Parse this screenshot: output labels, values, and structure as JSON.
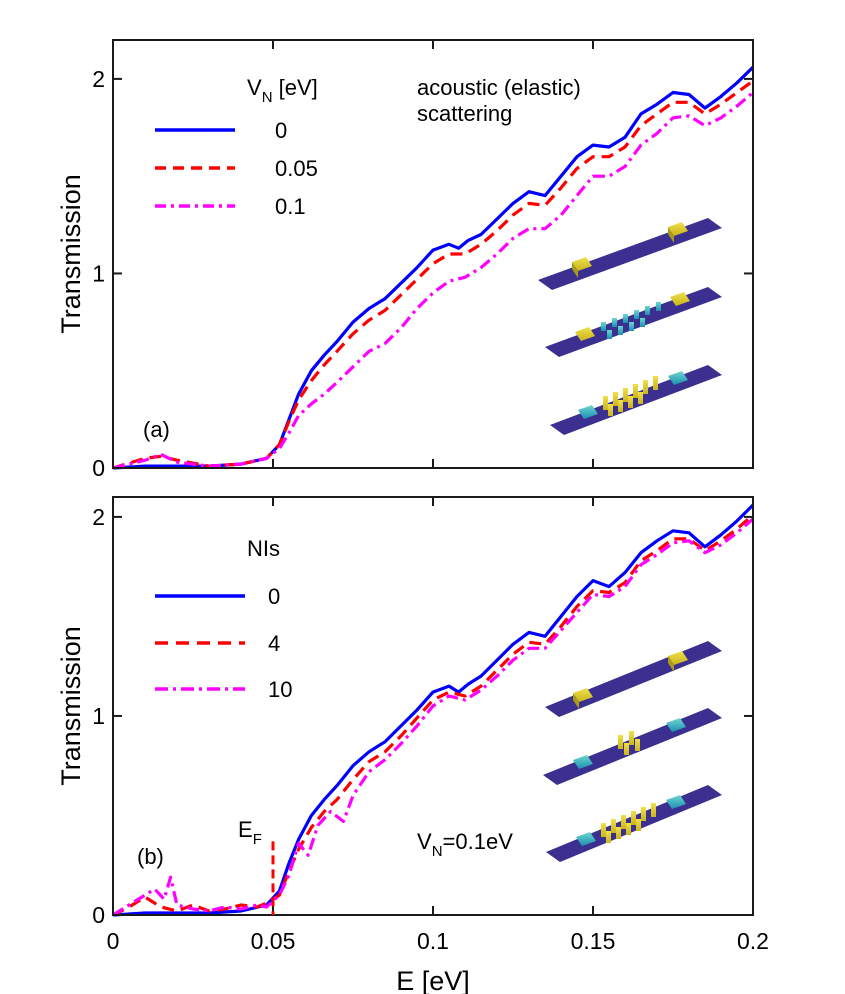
{
  "chart_data": [
    {
      "panel": "(a)",
      "type": "line",
      "xlabel": "",
      "ylabel": "Transmission",
      "xlim": [
        0,
        0.2
      ],
      "ylim": [
        0,
        2.2
      ],
      "xticks": [
        0,
        0.05,
        0.1,
        0.15,
        0.2
      ],
      "yticks": [
        0,
        1,
        2
      ],
      "legend": {
        "placement": "top-left",
        "title": "V",
        "title_sub": "N",
        "title_suffix": " [eV]"
      },
      "annotation": {
        "line1": "acoustic (elastic)",
        "line2": "scattering"
      },
      "panel_label": "(a)",
      "series": [
        {
          "name": "0",
          "color": "#0000ff",
          "style": "solid",
          "x": [
            0,
            0.01,
            0.02,
            0.03,
            0.04,
            0.048,
            0.052,
            0.055,
            0.058,
            0.062,
            0.066,
            0.07,
            0.075,
            0.08,
            0.085,
            0.09,
            0.095,
            0.1,
            0.105,
            0.108,
            0.111,
            0.115,
            0.12,
            0.125,
            0.13,
            0.135,
            0.14,
            0.145,
            0.15,
            0.155,
            0.16,
            0.165,
            0.17,
            0.175,
            0.18,
            0.185,
            0.19,
            0.195,
            0.2
          ],
          "y": [
            0,
            0.01,
            0.01,
            0.01,
            0.02,
            0.05,
            0.12,
            0.25,
            0.38,
            0.5,
            0.58,
            0.65,
            0.75,
            0.82,
            0.87,
            0.95,
            1.03,
            1.12,
            1.15,
            1.13,
            1.17,
            1.2,
            1.28,
            1.36,
            1.42,
            1.4,
            1.5,
            1.6,
            1.66,
            1.65,
            1.7,
            1.82,
            1.87,
            1.93,
            1.92,
            1.85,
            1.91,
            1.98,
            2.06
          ]
        },
        {
          "name": "0.05",
          "color": "#ff0000",
          "style": "dashed",
          "x": [
            0,
            0.01,
            0.015,
            0.02,
            0.03,
            0.04,
            0.048,
            0.052,
            0.055,
            0.058,
            0.062,
            0.066,
            0.07,
            0.075,
            0.08,
            0.085,
            0.09,
            0.095,
            0.1,
            0.105,
            0.11,
            0.115,
            0.12,
            0.125,
            0.13,
            0.135,
            0.14,
            0.145,
            0.15,
            0.155,
            0.16,
            0.165,
            0.17,
            0.175,
            0.18,
            0.185,
            0.19,
            0.195,
            0.2
          ],
          "y": [
            0,
            0.05,
            0.06,
            0.04,
            0.01,
            0.02,
            0.05,
            0.12,
            0.24,
            0.35,
            0.45,
            0.53,
            0.6,
            0.69,
            0.76,
            0.81,
            0.89,
            0.97,
            1.05,
            1.1,
            1.1,
            1.15,
            1.22,
            1.3,
            1.36,
            1.35,
            1.44,
            1.54,
            1.6,
            1.6,
            1.65,
            1.76,
            1.82,
            1.88,
            1.88,
            1.82,
            1.87,
            1.93,
            1.99
          ]
        },
        {
          "name": "0.1",
          "color": "#ff00ff",
          "style": "dashdot",
          "x": [
            0,
            0.01,
            0.015,
            0.02,
            0.03,
            0.04,
            0.048,
            0.052,
            0.055,
            0.058,
            0.062,
            0.066,
            0.07,
            0.075,
            0.08,
            0.085,
            0.09,
            0.095,
            0.1,
            0.105,
            0.11,
            0.115,
            0.12,
            0.125,
            0.13,
            0.135,
            0.14,
            0.145,
            0.15,
            0.155,
            0.16,
            0.165,
            0.17,
            0.175,
            0.18,
            0.185,
            0.19,
            0.195,
            0.2
          ],
          "y": [
            0,
            0.04,
            0.07,
            0.03,
            0.01,
            0.02,
            0.05,
            0.1,
            0.18,
            0.27,
            0.33,
            0.38,
            0.44,
            0.52,
            0.6,
            0.64,
            0.72,
            0.82,
            0.9,
            0.96,
            0.98,
            1.03,
            1.1,
            1.18,
            1.23,
            1.23,
            1.3,
            1.4,
            1.5,
            1.5,
            1.55,
            1.66,
            1.72,
            1.8,
            1.81,
            1.76,
            1.8,
            1.86,
            1.93
          ]
        }
      ]
    },
    {
      "panel": "(b)",
      "type": "line",
      "xlabel": "E [eV]",
      "ylabel": "Transmission",
      "xlim": [
        0,
        0.2
      ],
      "ylim": [
        0,
        2.1
      ],
      "xticks": [
        0,
        0.05,
        0.1,
        0.15,
        0.2
      ],
      "yticks": [
        0,
        1,
        2
      ],
      "legend": {
        "placement": "top-left",
        "title": "NIs"
      },
      "annotation": {
        "text": "V",
        "sub": "N",
        "suffix": "=0.1eV"
      },
      "ef_label": {
        "text": "E",
        "sub": "F",
        "x": 0.05
      },
      "panel_label": "(b)",
      "series": [
        {
          "name": "0",
          "color": "#0000ff",
          "style": "solid",
          "x": [
            0,
            0.01,
            0.02,
            0.03,
            0.04,
            0.048,
            0.052,
            0.055,
            0.058,
            0.062,
            0.066,
            0.07,
            0.075,
            0.08,
            0.085,
            0.09,
            0.095,
            0.1,
            0.105,
            0.108,
            0.111,
            0.115,
            0.12,
            0.125,
            0.13,
            0.135,
            0.14,
            0.145,
            0.15,
            0.155,
            0.16,
            0.165,
            0.17,
            0.175,
            0.18,
            0.185,
            0.19,
            0.195,
            0.2
          ],
          "y": [
            0,
            0.01,
            0.01,
            0.01,
            0.02,
            0.05,
            0.12,
            0.26,
            0.38,
            0.5,
            0.58,
            0.65,
            0.75,
            0.82,
            0.87,
            0.95,
            1.03,
            1.12,
            1.15,
            1.12,
            1.16,
            1.2,
            1.28,
            1.36,
            1.42,
            1.4,
            1.5,
            1.6,
            1.68,
            1.65,
            1.72,
            1.82,
            1.88,
            1.93,
            1.92,
            1.85,
            1.91,
            1.98,
            2.06
          ]
        },
        {
          "name": "4",
          "color": "#ff0000",
          "style": "dashed",
          "x": [
            0,
            0.005,
            0.01,
            0.015,
            0.02,
            0.025,
            0.03,
            0.035,
            0.04,
            0.045,
            0.048,
            0.052,
            0.055,
            0.058,
            0.062,
            0.066,
            0.07,
            0.075,
            0.08,
            0.085,
            0.09,
            0.095,
            0.1,
            0.105,
            0.11,
            0.115,
            0.12,
            0.125,
            0.13,
            0.135,
            0.14,
            0.145,
            0.15,
            0.155,
            0.16,
            0.165,
            0.17,
            0.175,
            0.18,
            0.185,
            0.19,
            0.195,
            0.2
          ],
          "y": [
            0,
            0.04,
            0.09,
            0.04,
            0.02,
            0.05,
            0.02,
            0.03,
            0.05,
            0.04,
            0.06,
            0.1,
            0.22,
            0.33,
            0.44,
            0.52,
            0.58,
            0.68,
            0.77,
            0.82,
            0.9,
            0.99,
            1.08,
            1.12,
            1.1,
            1.15,
            1.23,
            1.31,
            1.37,
            1.36,
            1.45,
            1.55,
            1.63,
            1.62,
            1.67,
            1.78,
            1.83,
            1.89,
            1.89,
            1.83,
            1.88,
            1.94,
            2.01
          ]
        },
        {
          "name": "10",
          "color": "#ff00ff",
          "style": "dashdot",
          "x": [
            0,
            0.005,
            0.01,
            0.013,
            0.016,
            0.018,
            0.02,
            0.025,
            0.03,
            0.035,
            0.04,
            0.045,
            0.048,
            0.052,
            0.055,
            0.058,
            0.061,
            0.064,
            0.068,
            0.072,
            0.075,
            0.08,
            0.085,
            0.09,
            0.095,
            0.1,
            0.105,
            0.11,
            0.115,
            0.12,
            0.125,
            0.13,
            0.135,
            0.14,
            0.145,
            0.15,
            0.155,
            0.16,
            0.165,
            0.17,
            0.175,
            0.18,
            0.185,
            0.19,
            0.195,
            0.2
          ],
          "y": [
            0,
            0.05,
            0.1,
            0.13,
            0.08,
            0.19,
            0.05,
            0.03,
            0.02,
            0.04,
            0.03,
            0.05,
            0.04,
            0.1,
            0.2,
            0.36,
            0.3,
            0.45,
            0.52,
            0.47,
            0.6,
            0.72,
            0.78,
            0.86,
            0.95,
            1.05,
            1.1,
            1.08,
            1.13,
            1.2,
            1.28,
            1.34,
            1.34,
            1.43,
            1.52,
            1.61,
            1.6,
            1.65,
            1.76,
            1.81,
            1.87,
            1.88,
            1.82,
            1.86,
            1.92,
            1.99
          ]
        }
      ]
    }
  ]
}
